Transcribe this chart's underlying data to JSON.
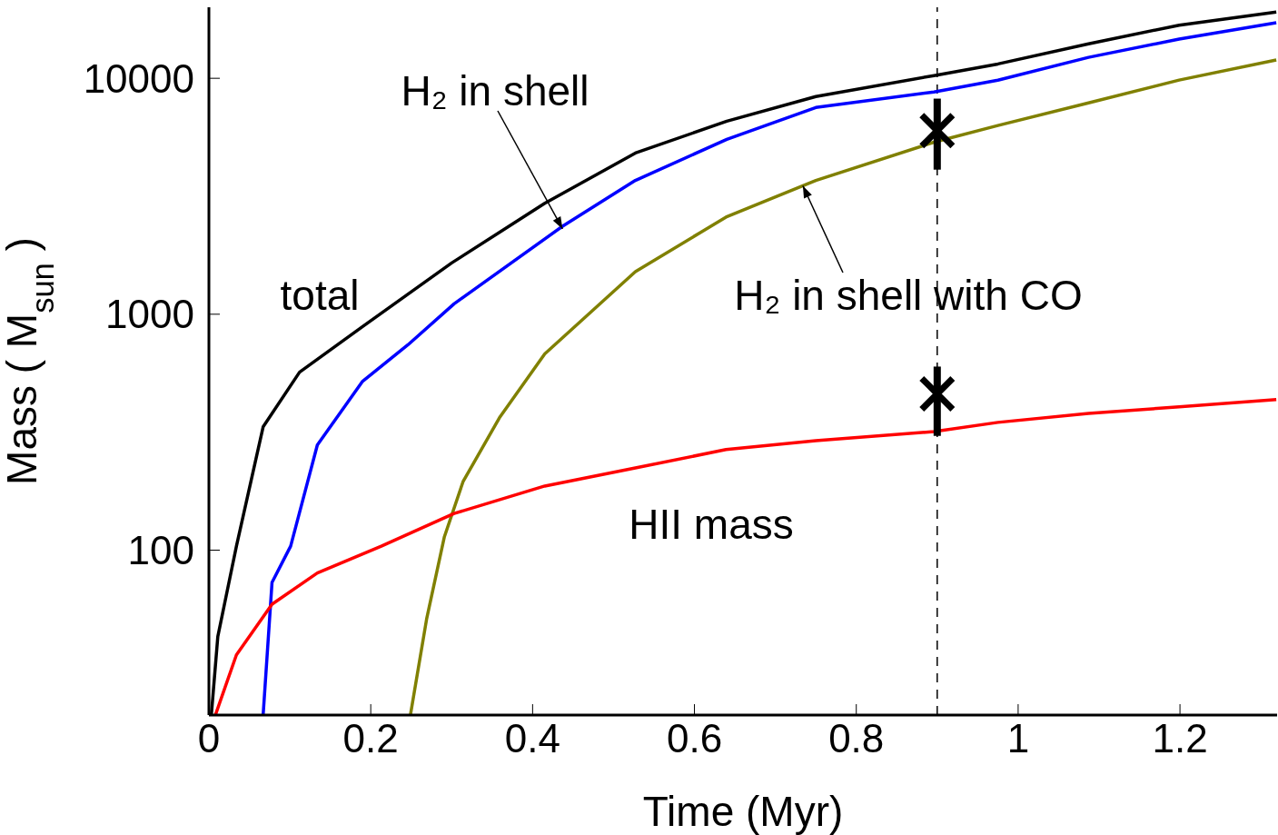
{
  "chart_data": {
    "type": "line",
    "xlabel": "Time (Myr)",
    "ylabel": "Mass ( M$_{sun}$ )",
    "log": "y",
    "xlim": [
      0,
      1.32
    ],
    "ylim": [
      20,
      20000
    ],
    "xticks": [
      0,
      0.2,
      0.4,
      0.6,
      0.8,
      1,
      1.2
    ],
    "yticks": [
      100,
      1000,
      10000
    ],
    "marker": "none",
    "line_style": "solid",
    "series": [
      {
        "color": "#000000",
        "x": [
          0.003,
          0.011,
          0.034,
          0.067,
          0.112,
          0.19,
          0.3,
          0.415,
          0.527,
          0.64,
          0.75,
          0.896,
          0.975,
          1.087,
          1.199,
          1.319
        ],
        "values": [
          20,
          43,
          104,
          333,
          568,
          887,
          1650,
          2950,
          4820,
          6580,
          8370,
          10270,
          11500,
          14000,
          16800,
          19100
        ]
      },
      {
        "color": "#0000ff",
        "x": [
          0.067,
          0.078,
          0.101,
          0.134,
          0.19,
          0.246,
          0.303,
          0.437,
          0.527,
          0.64,
          0.75,
          0.896,
          0.975,
          1.087,
          1.199,
          1.319
        ],
        "values": [
          20,
          73,
          104,
          279,
          520,
          742,
          1107,
          2360,
          3690,
          5510,
          7520,
          8750,
          9820,
          12270,
          14660,
          17200
        ]
      },
      {
        "color": "#808000",
        "x": [
          0.249,
          0.269,
          0.291,
          0.314,
          0.359,
          0.415,
          0.527,
          0.639,
          0.75,
          0.896,
          0.975,
          1.087,
          1.199,
          1.319
        ],
        "values": [
          20,
          51,
          114,
          195,
          364,
          679,
          1514,
          2580,
          3690,
          5360,
          6310,
          7870,
          9830,
          11950
        ]
      },
      {
        "color": "#ff0000",
        "x": [
          0.008,
          0.034,
          0.078,
          0.134,
          0.213,
          0.303,
          0.415,
          0.527,
          0.639,
          0.75,
          0.896,
          0.975,
          1.087,
          1.199,
          1.319
        ],
        "values": [
          20,
          36,
          59,
          80,
          104,
          143,
          187,
          223,
          267,
          291,
          318,
          348,
          380,
          405,
          435
        ]
      },
      {
        "type": "scatter",
        "marker": "cross",
        "color": "#000000",
        "x": [
          0.9,
          0.9
        ],
        "values": [
          6000,
          460
        ],
        "errors": [
          [
            4100,
            8200
          ],
          [
            305,
            600
          ]
        ]
      }
    ],
    "ref_lines": [
      {
        "axis": "x",
        "value": 0.9,
        "color": "#000000",
        "line_style": "dashed"
      }
    ],
    "annotations": [
      {
        "text": "H₂ in shell",
        "x": 0.437,
        "y": 2300
      },
      {
        "text": "H₂ in shell with CO",
        "x": 0.734,
        "y": 3500
      },
      "total",
      "HII mass"
    ]
  }
}
